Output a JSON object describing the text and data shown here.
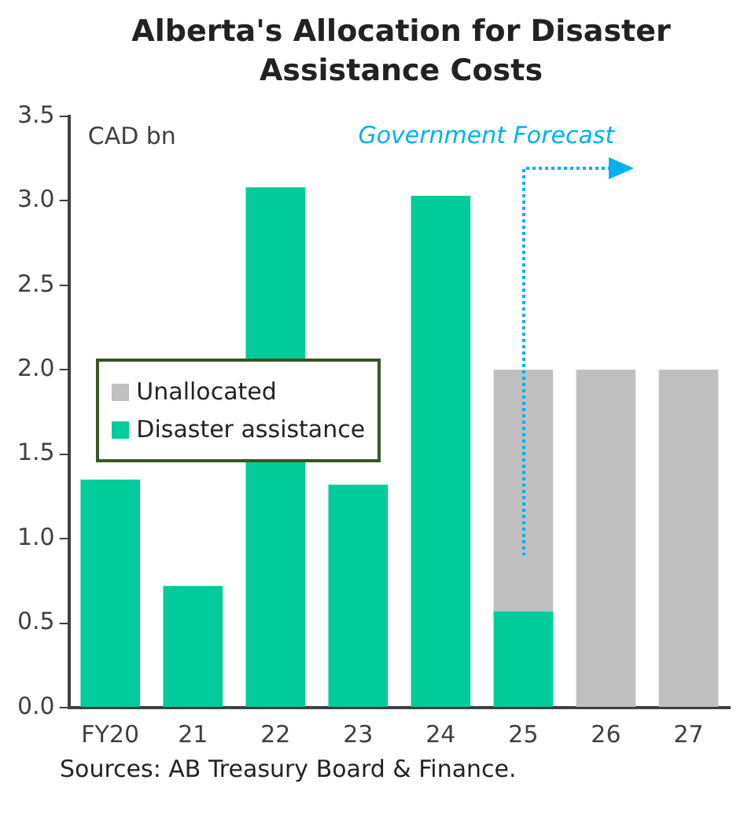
{
  "chart_data": {
    "type": "bar",
    "title": "Alberta's Allocation for Disaster Assistance Costs",
    "ylabel": "CAD bn",
    "categories": [
      "FY20",
      "21",
      "22",
      "23",
      "24",
      "25",
      "26",
      "27"
    ],
    "stacked": true,
    "series": [
      {
        "name": "Disaster assistance",
        "color": "#00cc99",
        "values": [
          1.35,
          0.72,
          3.08,
          1.32,
          3.03,
          0.57,
          null,
          null
        ]
      },
      {
        "name": "Unallocated",
        "color": "#bfbfbf",
        "values": [
          null,
          null,
          null,
          null,
          null,
          1.43,
          2.0,
          2.0
        ]
      }
    ],
    "ylim": [
      0,
      3.5
    ],
    "yticks": [
      {
        "value": 0,
        "label": "0.0"
      },
      0.5,
      {
        "value": 1,
        "label": "1.0"
      },
      1.5,
      {
        "value": 2,
        "label": "2.0"
      },
      2.5,
      {
        "value": 3,
        "label": "3.0"
      },
      3.5
    ],
    "grid": false,
    "legend": "left",
    "annotations": [
      "Government Forecast",
      "Sources: AB Treasury Board & Finance."
    ]
  }
}
